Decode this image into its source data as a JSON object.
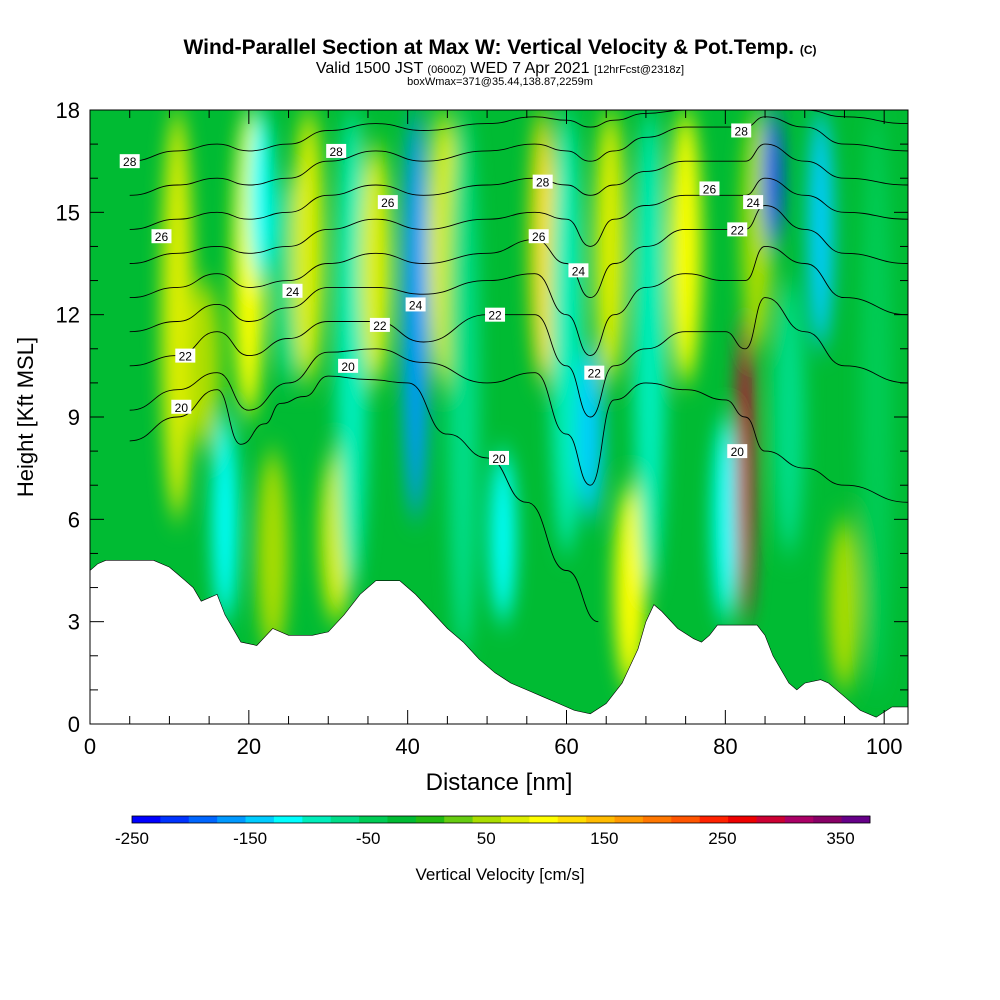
{
  "header": {
    "title": "Wind-Parallel Section at Max W: Vertical Velocity & Pot.Temp.",
    "copyright": "(C)",
    "valid_prefix": "Valid 1500 JST",
    "valid_z": "(0600Z)",
    "valid_date": "WED 7 Apr 2021",
    "valid_fcst": "[12hrFcst@2318z]",
    "box_info": "boxWmax=371@35.44,138.87,2259m"
  },
  "chart_data": {
    "type": "heatmap",
    "xlabel": "Distance [nm]",
    "ylabel": "Height [Kft MSL]",
    "xlim": [
      0,
      103
    ],
    "ylim": [
      0,
      18
    ],
    "x_ticks": [
      0,
      20,
      40,
      60,
      80,
      100
    ],
    "y_ticks": [
      0,
      3,
      6,
      9,
      12,
      15,
      18
    ],
    "colorbar": {
      "label": "Vertical Velocity [cm/s]",
      "tick_labels": [
        "-250",
        "-150",
        "-50",
        "50",
        "150",
        "250",
        "350"
      ],
      "tick_values": [
        -250,
        -150,
        -50,
        50,
        150,
        250,
        350
      ],
      "range": [
        -250,
        375
      ],
      "colors": [
        "#0000ff",
        "#0033ff",
        "#0066ff",
        "#0099ff",
        "#00ccff",
        "#00ffff",
        "#00eebb",
        "#00dd88",
        "#00cc55",
        "#00bb33",
        "#22bb11",
        "#66cc11",
        "#aadd00",
        "#ddee00",
        "#ffff00",
        "#ffdd00",
        "#ffbb00",
        "#ff9900",
        "#ff7700",
        "#ff5500",
        "#ff2200",
        "#ee0000",
        "#cc0033",
        "#aa0066",
        "#880066",
        "#660088"
      ]
    },
    "terrain_kft": [
      [
        0,
        4.5
      ],
      [
        1,
        4.7
      ],
      [
        2,
        4.8
      ],
      [
        5,
        4.8
      ],
      [
        8,
        4.8
      ],
      [
        10,
        4.6
      ],
      [
        11,
        4.4
      ],
      [
        12,
        4.2
      ],
      [
        13,
        4.0
      ],
      [
        14,
        3.6
      ],
      [
        15,
        3.7
      ],
      [
        16,
        3.8
      ],
      [
        17,
        3.2
      ],
      [
        18,
        2.8
      ],
      [
        19,
        2.4
      ],
      [
        21,
        2.3
      ],
      [
        23,
        2.8
      ],
      [
        25,
        2.6
      ],
      [
        28,
        2.6
      ],
      [
        30,
        2.7
      ],
      [
        32,
        3.2
      ],
      [
        34,
        3.8
      ],
      [
        36,
        4.2
      ],
      [
        39,
        4.2
      ],
      [
        41,
        3.8
      ],
      [
        43,
        3.3
      ],
      [
        45,
        2.8
      ],
      [
        47,
        2.4
      ],
      [
        49,
        1.9
      ],
      [
        51,
        1.5
      ],
      [
        53,
        1.2
      ],
      [
        55,
        1.0
      ],
      [
        57,
        0.8
      ],
      [
        59,
        0.6
      ],
      [
        61,
        0.4
      ],
      [
        63,
        0.3
      ],
      [
        65,
        0.6
      ],
      [
        67,
        1.2
      ],
      [
        69,
        2.2
      ],
      [
        70,
        3.0
      ],
      [
        71,
        3.5
      ],
      [
        72,
        3.3
      ],
      [
        74,
        2.8
      ],
      [
        76,
        2.5
      ],
      [
        77,
        2.4
      ],
      [
        78,
        2.6
      ],
      [
        79,
        2.9
      ],
      [
        81,
        2.9
      ],
      [
        84,
        2.9
      ],
      [
        85,
        2.6
      ],
      [
        86,
        2.0
      ],
      [
        87,
        1.6
      ],
      [
        88,
        1.2
      ],
      [
        89,
        1.0
      ],
      [
        90,
        1.2
      ],
      [
        92,
        1.3
      ],
      [
        93,
        1.2
      ],
      [
        95,
        0.8
      ],
      [
        97,
        0.4
      ],
      [
        99,
        0.2
      ],
      [
        101,
        0.5
      ],
      [
        103,
        0.5
      ]
    ],
    "w_bands": [
      {
        "x": 11,
        "value": 80,
        "top": 18,
        "bottom": 6
      },
      {
        "x": 14.5,
        "value": 60,
        "top": 13,
        "bottom": 8
      },
      {
        "x": 17,
        "value": -120,
        "top": 9,
        "bottom": 3
      },
      {
        "x": 20,
        "value": 90,
        "top": 18,
        "bottom": 9
      },
      {
        "x": 21.5,
        "value": -120,
        "top": 18,
        "bottom": 13
      },
      {
        "x": 23,
        "value": 45,
        "top": 8,
        "bottom": 2
      },
      {
        "x": 25,
        "value": -60,
        "top": 16,
        "bottom": 10
      },
      {
        "x": 27.5,
        "value": 80,
        "top": 18,
        "bottom": 10
      },
      {
        "x": 31,
        "value": 80,
        "top": 8,
        "bottom": 3
      },
      {
        "x": 33,
        "value": -90,
        "top": 18,
        "bottom": 4
      },
      {
        "x": 36,
        "value": 80,
        "top": 17,
        "bottom": 10
      },
      {
        "x": 41,
        "value": -170,
        "top": 18,
        "bottom": 6
      },
      {
        "x": 44.5,
        "value": 80,
        "top": 18,
        "bottom": 10
      },
      {
        "x": 47,
        "value": -60,
        "top": 18,
        "bottom": 2
      },
      {
        "x": 52,
        "value": -120,
        "top": 8,
        "bottom": 3
      },
      {
        "x": 57,
        "value": 130,
        "top": 18,
        "bottom": 10
      },
      {
        "x": 60,
        "value": -90,
        "top": 18,
        "bottom": 5
      },
      {
        "x": 63,
        "value": -130,
        "top": 11,
        "bottom": 6
      },
      {
        "x": 65.5,
        "value": 80,
        "top": 18,
        "bottom": 10
      },
      {
        "x": 68,
        "value": 100,
        "top": 7,
        "bottom": 1
      },
      {
        "x": 70.5,
        "value": -90,
        "top": 18,
        "bottom": 4
      },
      {
        "x": 75,
        "value": 100,
        "top": 18,
        "bottom": 10
      },
      {
        "x": 80,
        "value": -120,
        "top": 9,
        "bottom": 3
      },
      {
        "x": 82.5,
        "value": 300,
        "top": 12,
        "bottom": 3
      },
      {
        "x": 84,
        "value": 60,
        "top": 18,
        "bottom": 11
      },
      {
        "x": 86,
        "value": -210,
        "top": 18,
        "bottom": 14
      },
      {
        "x": 88,
        "value": -80,
        "top": 13,
        "bottom": 5
      },
      {
        "x": 92,
        "value": -150,
        "top": 18,
        "bottom": 11
      },
      {
        "x": 95,
        "value": 40,
        "top": 6,
        "bottom": 1
      },
      {
        "x": 99,
        "value": -40,
        "top": 18,
        "bottom": 1
      }
    ],
    "theta_contours": [
      {
        "level": 20,
        "points": [
          [
            5,
            8.3
          ],
          [
            11,
            9
          ],
          [
            16,
            9.8
          ],
          [
            19,
            8.2
          ],
          [
            22,
            8.8
          ],
          [
            24,
            9.4
          ],
          [
            27,
            9.6
          ],
          [
            30,
            10.2
          ],
          [
            35,
            10.1
          ],
          [
            40,
            10.0
          ],
          [
            45,
            8.5
          ],
          [
            50,
            7.8
          ],
          [
            55,
            6.5
          ],
          [
            60,
            4.5
          ],
          [
            64,
            3.0
          ]
        ]
      },
      {
        "level": 21,
        "points": [
          [
            5,
            9.2
          ],
          [
            11,
            9.8
          ],
          [
            16,
            10.3
          ],
          [
            20,
            9.2
          ],
          [
            25,
            10.0
          ],
          [
            30,
            10.9
          ],
          [
            36,
            11.0
          ],
          [
            42,
            10.6
          ],
          [
            50,
            10.0
          ],
          [
            56,
            10.3
          ],
          [
            60,
            8.5
          ],
          [
            63,
            7.0
          ],
          [
            66,
            9.5
          ],
          [
            70,
            10.0
          ],
          [
            75,
            9.8
          ],
          [
            80,
            9.5
          ],
          [
            82.5,
            9.0
          ],
          [
            85,
            8.0
          ],
          [
            90,
            7.5
          ],
          [
            95,
            7.0
          ],
          [
            103,
            6.5
          ]
        ]
      },
      {
        "level": 22,
        "points": [
          [
            5,
            10.5
          ],
          [
            11,
            10.8
          ],
          [
            16,
            11.5
          ],
          [
            20,
            10.8
          ],
          [
            25,
            11.3
          ],
          [
            30,
            11.8
          ],
          [
            36,
            11.8
          ],
          [
            42,
            11.2
          ],
          [
            50,
            12.0
          ],
          [
            56,
            12.0
          ],
          [
            60,
            10.5
          ],
          [
            63,
            9.0
          ],
          [
            66,
            10.5
          ],
          [
            70,
            11.0
          ],
          [
            75,
            11.5
          ],
          [
            80,
            11.5
          ],
          [
            82.5,
            11.0
          ],
          [
            85,
            12.5
          ],
          [
            90,
            11.5
          ],
          [
            95,
            10.5
          ],
          [
            103,
            10.0
          ]
        ]
      },
      {
        "level": 23,
        "points": [
          [
            5,
            11.5
          ],
          [
            11,
            11.8
          ],
          [
            16,
            12.3
          ],
          [
            20,
            11.8
          ],
          [
            25,
            12.2
          ],
          [
            30,
            12.8
          ],
          [
            36,
            12.8
          ],
          [
            42,
            12.6
          ],
          [
            50,
            13.0
          ],
          [
            56,
            13.2
          ],
          [
            60,
            12.0
          ],
          [
            63,
            10.8
          ],
          [
            66,
            12.0
          ],
          [
            70,
            12.8
          ],
          [
            75,
            13.2
          ],
          [
            80,
            13.0
          ],
          [
            82.5,
            13.0
          ],
          [
            85,
            14.0
          ],
          [
            90,
            13.5
          ],
          [
            95,
            12.5
          ],
          [
            103,
            12.0
          ]
        ]
      },
      {
        "level": 24,
        "points": [
          [
            5,
            12.5
          ],
          [
            11,
            12.8
          ],
          [
            16,
            13.2
          ],
          [
            20,
            12.8
          ],
          [
            25,
            13.0
          ],
          [
            30,
            13.5
          ],
          [
            36,
            13.8
          ],
          [
            42,
            13.5
          ],
          [
            50,
            13.8
          ],
          [
            56,
            14.2
          ],
          [
            60,
            13.5
          ],
          [
            63,
            12.5
          ],
          [
            66,
            13.5
          ],
          [
            70,
            14.0
          ],
          [
            75,
            14.5
          ],
          [
            80,
            14.5
          ],
          [
            82.5,
            14.5
          ],
          [
            85,
            15.2
          ],
          [
            90,
            14.5
          ],
          [
            95,
            13.8
          ],
          [
            103,
            13.5
          ]
        ]
      },
      {
        "level": 25,
        "points": [
          [
            5,
            13.5
          ],
          [
            11,
            13.8
          ],
          [
            16,
            14.0
          ],
          [
            20,
            13.8
          ],
          [
            25,
            14.0
          ],
          [
            30,
            14.5
          ],
          [
            36,
            14.8
          ],
          [
            42,
            14.5
          ],
          [
            50,
            14.8
          ],
          [
            56,
            15.0
          ],
          [
            60,
            14.8
          ],
          [
            63,
            14.0
          ],
          [
            66,
            14.8
          ],
          [
            70,
            15.2
          ],
          [
            75,
            15.5
          ],
          [
            80,
            15.5
          ],
          [
            82.5,
            15.5
          ],
          [
            85,
            16.0
          ],
          [
            90,
            15.5
          ],
          [
            95,
            15.0
          ],
          [
            103,
            14.8
          ]
        ]
      },
      {
        "level": 26,
        "points": [
          [
            5,
            14.5
          ],
          [
            11,
            14.8
          ],
          [
            16,
            15.0
          ],
          [
            20,
            14.8
          ],
          [
            25,
            15.0
          ],
          [
            30,
            15.5
          ],
          [
            36,
            15.8
          ],
          [
            42,
            15.5
          ],
          [
            50,
            15.8
          ],
          [
            56,
            16.0
          ],
          [
            60,
            15.8
          ],
          [
            63,
            15.5
          ],
          [
            66,
            15.8
          ],
          [
            70,
            16.2
          ],
          [
            75,
            16.5
          ],
          [
            80,
            16.5
          ],
          [
            82.5,
            16.5
          ],
          [
            85,
            17.0
          ],
          [
            90,
            16.5
          ],
          [
            95,
            16.0
          ],
          [
            103,
            15.8
          ]
        ]
      },
      {
        "level": 27,
        "points": [
          [
            5,
            15.5
          ],
          [
            11,
            15.8
          ],
          [
            16,
            16.0
          ],
          [
            20,
            15.8
          ],
          [
            25,
            16.0
          ],
          [
            30,
            16.5
          ],
          [
            36,
            16.8
          ],
          [
            42,
            16.5
          ],
          [
            50,
            16.8
          ],
          [
            56,
            17.0
          ],
          [
            60,
            16.8
          ],
          [
            63,
            16.5
          ],
          [
            66,
            16.8
          ],
          [
            70,
            17.2
          ],
          [
            75,
            17.5
          ],
          [
            80,
            17.5
          ],
          [
            82.5,
            17.5
          ],
          [
            85,
            17.8
          ],
          [
            90,
            17.5
          ],
          [
            95,
            17.0
          ],
          [
            103,
            16.8
          ]
        ]
      },
      {
        "level": 28,
        "points": [
          [
            5,
            16.5
          ],
          [
            11,
            16.8
          ],
          [
            16,
            17.0
          ],
          [
            20,
            16.8
          ],
          [
            25,
            17.0
          ],
          [
            30,
            17.4
          ],
          [
            36,
            17.6
          ],
          [
            42,
            17.4
          ],
          [
            50,
            17.6
          ],
          [
            56,
            17.8
          ],
          [
            60,
            17.7
          ],
          [
            63,
            17.5
          ],
          [
            66,
            17.7
          ],
          [
            70,
            17.9
          ],
          [
            75,
            18.0
          ],
          [
            80,
            18.0
          ],
          [
            82.5,
            18.0
          ],
          [
            85,
            18.0
          ],
          [
            90,
            18.0
          ],
          [
            95,
            17.8
          ],
          [
            103,
            17.6
          ]
        ]
      }
    ],
    "contour_labels": [
      {
        "text": "28",
        "x": 5,
        "y": 16.5
      },
      {
        "text": "26",
        "x": 9,
        "y": 14.3
      },
      {
        "text": "22",
        "x": 12,
        "y": 10.8
      },
      {
        "text": "20",
        "x": 11.5,
        "y": 9.3
      },
      {
        "text": "24",
        "x": 25.5,
        "y": 12.7
      },
      {
        "text": "28",
        "x": 31,
        "y": 16.8
      },
      {
        "text": "20",
        "x": 32.5,
        "y": 10.5
      },
      {
        "text": "22",
        "x": 36.5,
        "y": 11.7
      },
      {
        "text": "26",
        "x": 37.5,
        "y": 15.3
      },
      {
        "text": "24",
        "x": 41,
        "y": 12.3
      },
      {
        "text": "22",
        "x": 51,
        "y": 12.0
      },
      {
        "text": "20",
        "x": 51.5,
        "y": 7.8
      },
      {
        "text": "26",
        "x": 56.5,
        "y": 14.3
      },
      {
        "text": "28",
        "x": 57,
        "y": 15.9
      },
      {
        "text": "24",
        "x": 61.5,
        "y": 13.3
      },
      {
        "text": "22",
        "x": 63.5,
        "y": 10.3
      },
      {
        "text": "26",
        "x": 78,
        "y": 15.7
      },
      {
        "text": "20",
        "x": 81.5,
        "y": 8.0
      },
      {
        "text": "22",
        "x": 81.5,
        "y": 14.5
      },
      {
        "text": "24",
        "x": 83.5,
        "y": 15.3
      },
      {
        "text": "28",
        "x": 82,
        "y": 17.4
      }
    ]
  }
}
